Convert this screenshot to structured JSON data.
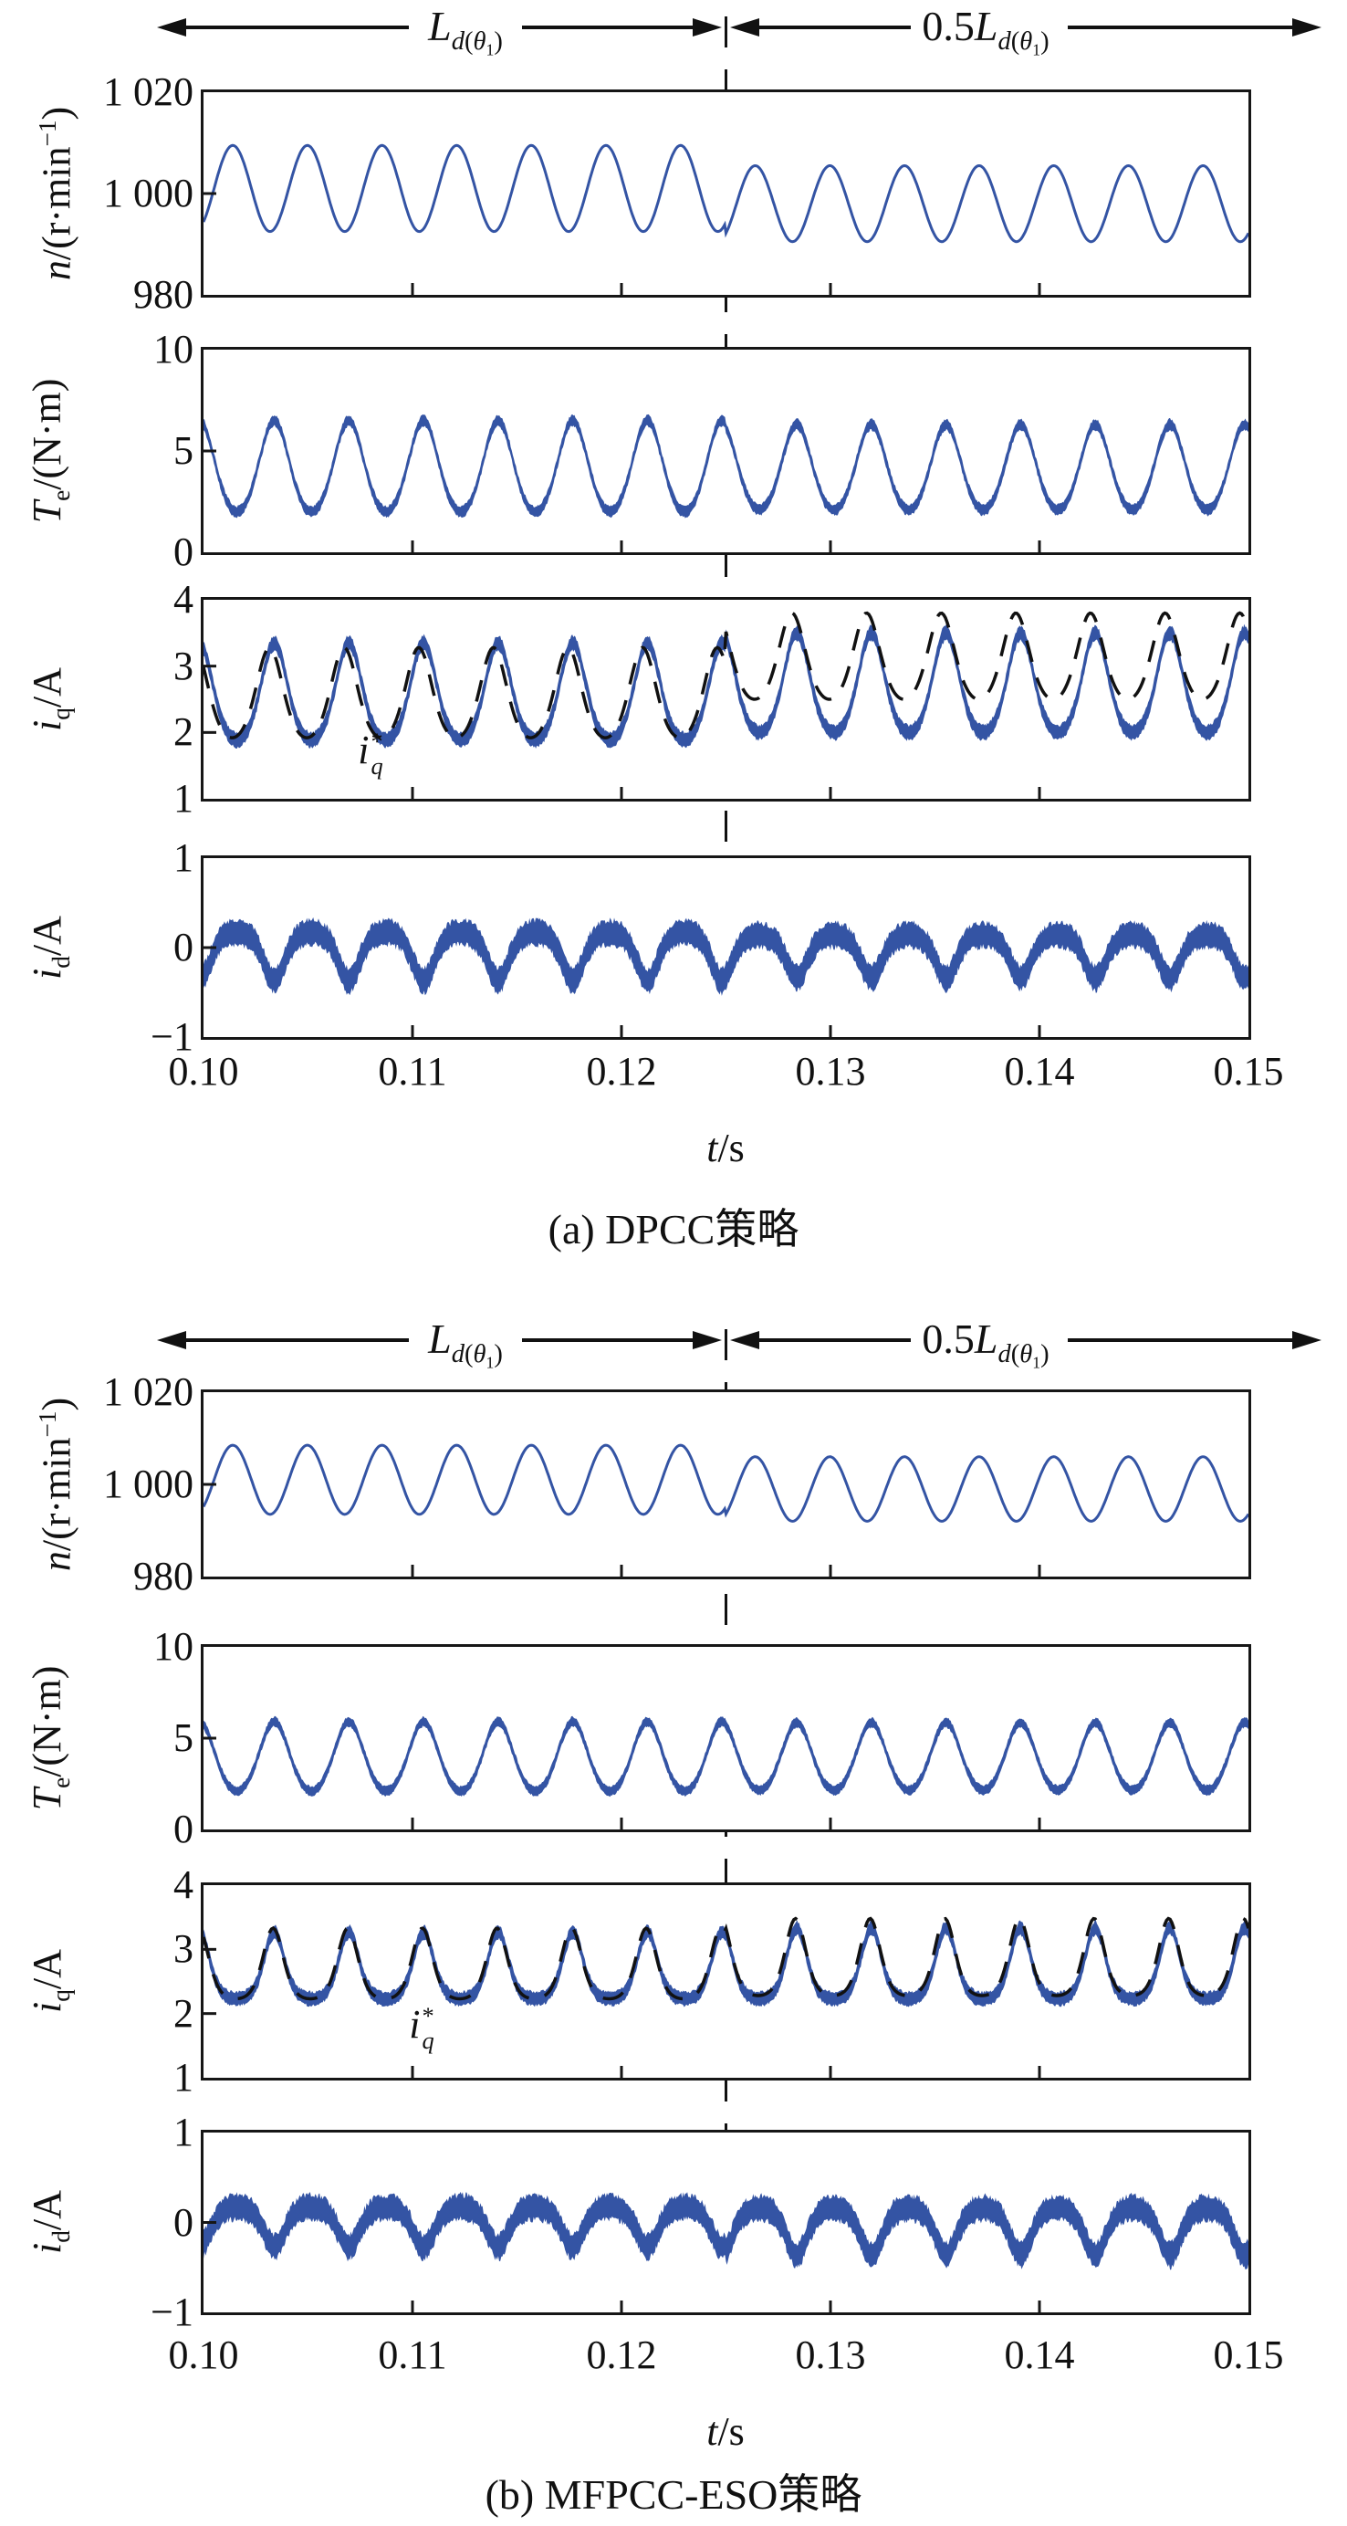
{
  "figure": {
    "annotation": {
      "left_label": "Ld(θ1)",
      "left_html": "<i>L</i><sub><i>d</i>(<i>θ</i><sub>1</sub>)</sub>",
      "right_label": "0.5Ld(θ1)",
      "right_html": "0.5<i>L</i><sub><i>d</i>(<i>θ</i><sub>1</sub>)</sub>"
    },
    "xlabel": "t/s",
    "xlabel_html": "<i>t</i>/s",
    "iq_ref_label": "iq*",
    "iq_ref_html": "<i>i</i><span class='ss'><span class='t'>*</span><span class='b'>q</span></span>"
  },
  "colors": {
    "trace_blue": "#3454a4",
    "ref_black": "#111111",
    "axis": "#161616"
  },
  "panels": [
    {
      "caption": "(a) DPCC策略",
      "xticks": [
        "0.10",
        "0.11",
        "0.12",
        "0.13",
        "0.14",
        "0.15"
      ],
      "subplots": [
        {
          "yticks": [
            "1 020",
            "1 000",
            "980"
          ],
          "ylabel_html": "<i>n</i>/(r·min<sup>−1</sup>)"
        },
        {
          "yticks": [
            "10",
            "5",
            "0"
          ],
          "ylabel_html": "<i>T</i><sub>e</sub>/(N·m)"
        },
        {
          "yticks": [
            "4",
            "3",
            "2",
            "1"
          ],
          "ylabel_html": "<i>i</i><sub>q</sub>/A"
        },
        {
          "yticks": [
            "1",
            "0",
            "−1"
          ],
          "ylabel_html": "<i>i</i><sub>d</sub>/A"
        }
      ]
    },
    {
      "caption": "(b) MFPCC-ESO策略",
      "xticks": [
        "0.10",
        "0.11",
        "0.12",
        "0.13",
        "0.14",
        "0.15"
      ],
      "subplots": [
        {
          "yticks": [
            "1 020",
            "1 000",
            "980"
          ],
          "ylabel_html": "<i>n</i>/(r·min<sup>−1</sup>)"
        },
        {
          "yticks": [
            "10",
            "5",
            "0"
          ],
          "ylabel_html": "<i>T</i><sub>e</sub>/(N·m)"
        },
        {
          "yticks": [
            "4",
            "3",
            "2",
            "1"
          ],
          "ylabel_html": "<i>i</i><sub>q</sub>/A"
        },
        {
          "yticks": [
            "1",
            "0",
            "−1"
          ],
          "ylabel_html": "<i>i</i><sub>d</sub>/A"
        }
      ]
    }
  ],
  "chart_data": [
    {
      "type": "line",
      "panel": "a",
      "title": "(a) DPCC策略",
      "x": {
        "label": "t/s",
        "range": [
          0.1,
          0.15
        ],
        "ticks": [
          0.1,
          0.11,
          0.12,
          0.13,
          0.14,
          0.15
        ]
      },
      "switch_time": 0.125,
      "regions": {
        "before": "Ld(θ1)",
        "after": "0.5Ld(θ1)"
      },
      "ripple_freq_hz": 280,
      "subplots": [
        {
          "signal": "n",
          "ylabel": "n/(r·min−1)",
          "ylim": [
            980,
            1020
          ],
          "yticks": [
            1020,
            1000,
            980
          ],
          "left_tick_values": [
            1000
          ],
          "series": [
            {
              "name": "n",
              "style": "line",
              "color": "#3454a4",
              "waveform": "sine",
              "shape_k": 0,
              "freq_hz": 280,
              "phase_rad": -0.89,
              "line_width": 3,
              "before": {
                "mean": 1001,
                "amplitude": 8.5
              },
              "after": {
                "mean": 998,
                "amplitude": 7.5
              }
            }
          ]
        },
        {
          "signal": "Te",
          "ylabel": "Te/(N·m)",
          "ylim": [
            0,
            10
          ],
          "yticks": [
            10,
            5,
            0
          ],
          "left_tick_values": [
            5
          ],
          "series": [
            {
              "name": "Te",
              "style": "band",
              "color": "#3454a4",
              "waveform": "peaked",
              "shape_k": 0.4,
              "freq_hz": 280,
              "phase_rad": 1.9,
              "band_halfwidth": 0.2,
              "noise": 0.13,
              "before": {
                "mean": 4.25,
                "amplitude": 2.25
              },
              "after": {
                "mean": 4.2,
                "amplitude": 2.1
              }
            }
          ]
        },
        {
          "signal": "iq",
          "ylabel": "iq/A",
          "ylim": [
            1,
            4
          ],
          "yticks": [
            4,
            3,
            2,
            1
          ],
          "left_tick_values": [
            3,
            2
          ],
          "series": [
            {
              "name": "iq",
              "style": "band",
              "color": "#3454a4",
              "waveform": "peaked",
              "shape_k": 0.7,
              "freq_hz": 280,
              "phase_rad": 1.9,
              "band_halfwidth": 0.085,
              "noise": 0.05,
              "before": {
                "mean": 2.62,
                "amplitude": 0.73
              },
              "after": {
                "mean": 2.75,
                "amplitude": 0.75
              }
            },
            {
              "name": "iq_ref",
              "label": "iq*",
              "style": "dashed",
              "color": "#111111",
              "waveform": "peaked",
              "shape_k": 0.7,
              "freq_hz": 280,
              "phase_rad": 2.3,
              "line_width": 3.5,
              "before": {
                "mean": 2.6,
                "amplitude": 0.68
              },
              "after": {
                "mean": 3.15,
                "amplitude": 0.65
              }
            }
          ]
        },
        {
          "signal": "id",
          "ylabel": "id/A",
          "ylim": [
            -1,
            1
          ],
          "yticks": [
            1,
            0,
            -1
          ],
          "left_tick_values": [
            0
          ],
          "series": [
            {
              "name": "id",
              "style": "band",
              "color": "#3454a4",
              "waveform": "peaked_inv",
              "shape_k": 1.2,
              "freq_hz": 280,
              "phase_rad": 1.9,
              "band_halfwidth": 0.1,
              "noise": 0.07,
              "before": {
                "mean": -0.1,
                "amplitude": 0.27
              },
              "after": {
                "mean": -0.1,
                "amplitude": 0.24
              }
            }
          ]
        }
      ]
    },
    {
      "type": "line",
      "panel": "b",
      "title": "(b) MFPCC-ESO策略",
      "x": {
        "label": "t/s",
        "range": [
          0.1,
          0.15
        ],
        "ticks": [
          0.1,
          0.11,
          0.12,
          0.13,
          0.14,
          0.15
        ]
      },
      "switch_time": 0.125,
      "regions": {
        "before": "Ld(θ1)",
        "after": "0.5Ld(θ1)"
      },
      "ripple_freq_hz": 280,
      "subplots": [
        {
          "signal": "n",
          "ylabel": "n/(r·min−1)",
          "ylim": [
            980,
            1020
          ],
          "yticks": [
            1020,
            1000,
            980
          ],
          "left_tick_values": [
            1000
          ],
          "series": [
            {
              "name": "n",
              "style": "line",
              "color": "#3454a4",
              "waveform": "sine",
              "shape_k": 0,
              "freq_hz": 280,
              "phase_rad": -0.89,
              "line_width": 3,
              "before": {
                "mean": 1001,
                "amplitude": 7.5
              },
              "after": {
                "mean": 999,
                "amplitude": 7
              }
            }
          ]
        },
        {
          "signal": "Te",
          "ylabel": "Te/(N·m)",
          "ylim": [
            0,
            10
          ],
          "yticks": [
            10,
            5,
            0
          ],
          "left_tick_values": [
            5
          ],
          "series": [
            {
              "name": "Te",
              "style": "band",
              "color": "#3454a4",
              "waveform": "peaked",
              "shape_k": 0.4,
              "freq_hz": 280,
              "phase_rad": 1.9,
              "band_halfwidth": 0.2,
              "noise": 0.12,
              "before": {
                "mean": 4.0,
                "amplitude": 1.9
              },
              "after": {
                "mean": 4.0,
                "amplitude": 1.85
              }
            }
          ]
        },
        {
          "signal": "iq",
          "ylabel": "iq/A",
          "ylim": [
            1,
            4
          ],
          "yticks": [
            4,
            3,
            2,
            1
          ],
          "left_tick_values": [
            3,
            2
          ],
          "series": [
            {
              "name": "iq",
              "style": "band",
              "color": "#3454a4",
              "waveform": "peaked",
              "shape_k": 1.4,
              "freq_hz": 280,
              "phase_rad": 1.9,
              "band_halfwidth": 0.08,
              "noise": 0.05,
              "before": {
                "mean": 2.75,
                "amplitude": 0.52
              },
              "after": {
                "mean": 2.78,
                "amplitude": 0.55
              }
            },
            {
              "name": "iq_ref",
              "label": "iq*",
              "style": "dashed",
              "color": "#111111",
              "waveform": "peaked",
              "shape_k": 1.4,
              "freq_hz": 280,
              "phase_rad": 2.0,
              "line_width": 3.5,
              "before": {
                "mean": 2.78,
                "amplitude": 0.55
              },
              "after": {
                "mean": 2.88,
                "amplitude": 0.6
              }
            }
          ]
        },
        {
          "signal": "id",
          "ylabel": "id/A",
          "ylim": [
            -1,
            1
          ],
          "yticks": [
            1,
            0,
            -1
          ],
          "left_tick_values": [
            0
          ],
          "series": [
            {
              "name": "id",
              "style": "band",
              "color": "#3454a4",
              "waveform": "peaked_inv",
              "shape_k": 1.2,
              "freq_hz": 280,
              "phase_rad": 1.9,
              "band_halfwidth": 0.1,
              "noise": 0.07,
              "before": {
                "mean": -0.05,
                "amplitude": 0.22
              },
              "after": {
                "mean": -0.1,
                "amplitude": 0.26
              }
            }
          ]
        }
      ]
    }
  ]
}
